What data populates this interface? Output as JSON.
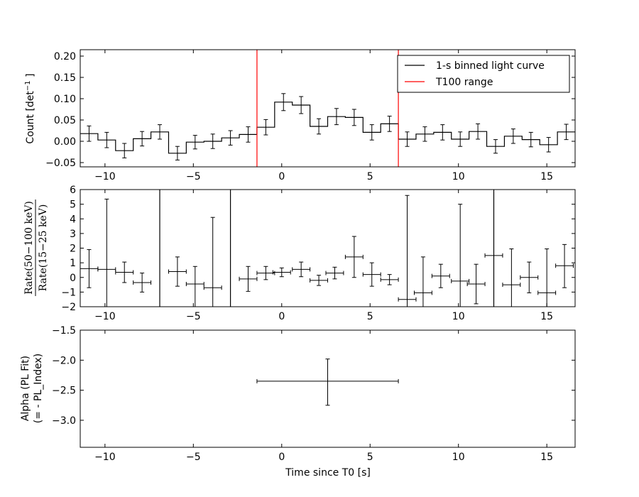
{
  "chart_data": [
    {
      "type": "line",
      "ylabel": "Count [det",
      "ylabel_sup": "−1",
      "ylabel_end": "]",
      "xlim": [
        -11.4,
        16.6
      ],
      "ylim": [
        -0.06,
        0.215
      ],
      "yticks": [
        -0.05,
        0.0,
        0.05,
        0.1,
        0.15,
        0.2
      ],
      "ytick_labels": [
        "−0.05",
        "0.00",
        "0.05",
        "0.10",
        "0.15",
        "0.20"
      ],
      "xticks": [
        -10,
        -5,
        0,
        5,
        10,
        15
      ],
      "xtick_labels": [
        "−10",
        "−5",
        "0",
        "5",
        "10",
        "15"
      ],
      "bin_start": -11.4,
      "bin_width": 1.0,
      "values": [
        0.018,
        0.003,
        -0.022,
        0.006,
        0.022,
        -0.028,
        -0.002,
        0.0,
        0.008,
        0.016,
        0.033,
        0.092,
        0.085,
        0.035,
        0.058,
        0.056,
        0.021,
        0.041,
        0.005,
        0.017,
        0.021,
        0.005,
        0.023,
        -0.012,
        0.012,
        0.004,
        -0.008,
        0.022
      ],
      "errors": [
        0.018,
        0.018,
        0.017,
        0.017,
        0.017,
        0.016,
        0.016,
        0.017,
        0.017,
        0.018,
        0.018,
        0.02,
        0.02,
        0.018,
        0.019,
        0.019,
        0.018,
        0.018,
        0.017,
        0.017,
        0.018,
        0.017,
        0.018,
        0.016,
        0.017,
        0.017,
        0.017,
        0.018
      ],
      "t100_lines": [
        -1.4,
        6.6
      ],
      "legend_position": "top-right",
      "legend": [
        {
          "label": "1-s binned light curve",
          "color": "#000000"
        },
        {
          "label": "T100 range",
          "color": "#ff0000"
        }
      ]
    },
    {
      "type": "scatter",
      "ylabel_num": "Rate(50−100 keV)",
      "ylabel_den": "Rate(15−25 keV)",
      "xlim": [
        -11.4,
        16.6
      ],
      "ylim": [
        -2,
        6
      ],
      "yticks": [
        -2,
        -1,
        0,
        1,
        2,
        3,
        4,
        5,
        6
      ],
      "ytick_labels": [
        "−2",
        "−1",
        "0",
        "1",
        "2",
        "3",
        "4",
        "5",
        "6"
      ],
      "xticks": [
        -10,
        -5,
        0,
        5,
        10,
        15
      ],
      "xtick_labels": [
        "−10",
        "−5",
        "0",
        "5",
        "10",
        "15"
      ],
      "x": [
        -10.9,
        -9.9,
        -8.9,
        -7.9,
        -6.9,
        -5.9,
        -4.9,
        -3.9,
        -2.9,
        -1.9,
        -0.9,
        0.0,
        1.1,
        2.1,
        3.0,
        4.1,
        5.1,
        6.1,
        7.1,
        8.0,
        9.0,
        10.1,
        11.0,
        12.0,
        13.0,
        14.0,
        15.0,
        16.0
      ],
      "y": [
        0.6,
        0.55,
        0.35,
        -0.35,
        null,
        0.4,
        -0.45,
        -0.7,
        null,
        -0.1,
        0.3,
        0.35,
        0.55,
        -0.2,
        0.3,
        1.4,
        0.2,
        -0.15,
        -1.5,
        -1.05,
        0.1,
        -0.25,
        -0.45,
        1.5,
        -0.5,
        0.0,
        -1.05,
        0.8
      ],
      "yerr_low": [
        1.3,
        2.6,
        0.7,
        0.65,
        null,
        1.0,
        2.0,
        1.5,
        null,
        0.85,
        0.45,
        0.3,
        0.5,
        0.35,
        0.4,
        1.4,
        0.8,
        0.35,
        1.5,
        2.0,
        0.8,
        2.0,
        1.35,
        3.5,
        2.5,
        1.05,
        1.0,
        1.5
      ],
      "yerr_high": [
        1.3,
        4.8,
        0.7,
        0.65,
        null,
        1.0,
        1.2,
        4.8,
        null,
        0.85,
        0.45,
        0.3,
        0.5,
        0.35,
        0.4,
        1.4,
        0.8,
        0.35,
        7.1,
        2.45,
        0.8,
        5.25,
        1.35,
        4.5,
        2.45,
        1.05,
        3.0,
        1.45
      ],
      "xerr": [
        0.5,
        0.5,
        0.5,
        0.5,
        null,
        0.5,
        0.5,
        0.5,
        null,
        0.5,
        0.5,
        0.5,
        0.5,
        0.5,
        0.5,
        0.5,
        0.5,
        0.5,
        0.5,
        0.5,
        0.5,
        0.5,
        0.5,
        0.5,
        0.5,
        0.5,
        0.5,
        0.5
      ],
      "vertical_lines": [
        -6.9,
        -2.9,
        12.0
      ]
    },
    {
      "type": "scatter",
      "ylabel_line1": "Alpha (PL Fit)",
      "ylabel_line2": "(= - PL_Index)",
      "xlabel": "Time since T0 [s]",
      "xlim": [
        -11.4,
        16.6
      ],
      "ylim": [
        -3.45,
        -1.5
      ],
      "yticks": [
        -3.0,
        -2.5,
        -2.0,
        -1.5
      ],
      "ytick_labels": [
        "−3.0",
        "−2.5",
        "−2.0",
        "−1.5"
      ],
      "xticks": [
        -10,
        -5,
        0,
        5,
        10,
        15
      ],
      "xtick_labels": [
        "−10",
        "−5",
        "0",
        "5",
        "10",
        "15"
      ],
      "x": [
        2.6
      ],
      "y": [
        -2.35
      ],
      "xerr_low": [
        4.0
      ],
      "xerr_high": [
        4.0
      ],
      "yerr_low": [
        0.4
      ],
      "yerr_high": [
        0.37
      ]
    }
  ]
}
